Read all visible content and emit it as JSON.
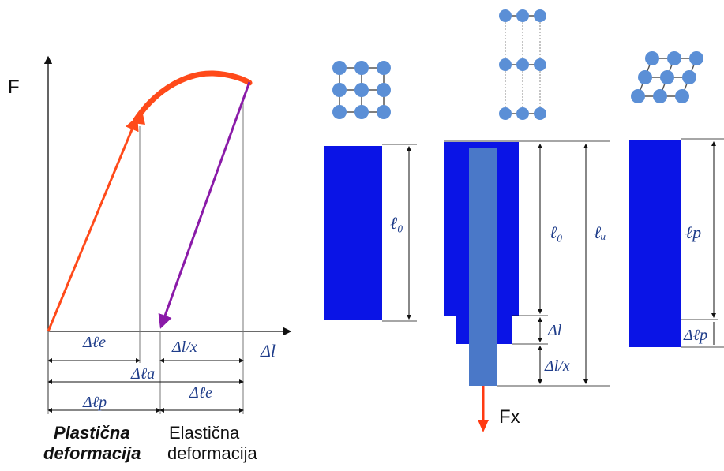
{
  "graph": {
    "y_axis_label": "F",
    "delta_l": "Δl",
    "delta_le_top": "Δℓe",
    "delta_lx_top": "Δl/x",
    "delta_la": "Δℓa",
    "delta_lp": "Δℓp",
    "delta_le_bottom": "Δℓe",
    "plastic_caption_line1": "Plastična",
    "plastic_caption_line2": "deformacija",
    "elastic_caption_line1": "Elastična",
    "elastic_caption_line2": "deformacija"
  },
  "specimens": {
    "length_initial": "ℓ₀",
    "length_initial_2": "ℓ₀",
    "length_loaded": "ℓᵤ",
    "delta_l": "Δl",
    "delta_lx": "Δl/x",
    "force": "Fx",
    "length_plastic": "ℓp",
    "delta_lp": "Δℓp"
  },
  "colors": {
    "specimen_blue": "#0a14e6",
    "inner_bar": "#4a78c8",
    "atom": "#5b8fd6",
    "loading_line": "#ff4a1a",
    "unloading_line": "#8a1aa8",
    "force_arrow": "#ff3a12"
  }
}
